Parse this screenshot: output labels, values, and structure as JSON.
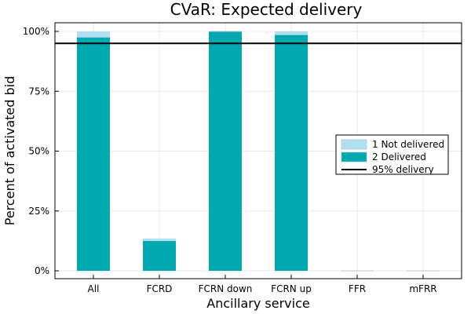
{
  "chart_data": {
    "type": "bar",
    "title": "CVaR: Expected delivery",
    "xlabel": "Ancillary service",
    "ylabel": "Percent of activated bid",
    "categories": [
      "All",
      "FCRD",
      "FCRN down",
      "FCRN up",
      "FFR",
      "mFRR"
    ],
    "stacked": true,
    "series": [
      {
        "name": "2 Delivered",
        "color": "#00a8b0",
        "values": [
          97.5,
          12.5,
          100,
          98.5,
          0,
          0
        ]
      },
      {
        "name": "1 Not delivered",
        "color": "#b0dff0",
        "values": [
          2.5,
          1.0,
          0,
          1.5,
          0,
          0
        ]
      }
    ],
    "reference_line": {
      "name": "95% delivery",
      "value": 95,
      "color": "#000000"
    },
    "ylim": [
      0,
      100
    ],
    "yticks": [
      "0%",
      "25%",
      "50%",
      "75%",
      "100%"
    ],
    "ytick_values": [
      0,
      25,
      50,
      75,
      100
    ],
    "legend_order": [
      "1 Not delivered",
      "2 Delivered",
      "95% delivery"
    ],
    "legend_position": "right",
    "grid": true
  }
}
